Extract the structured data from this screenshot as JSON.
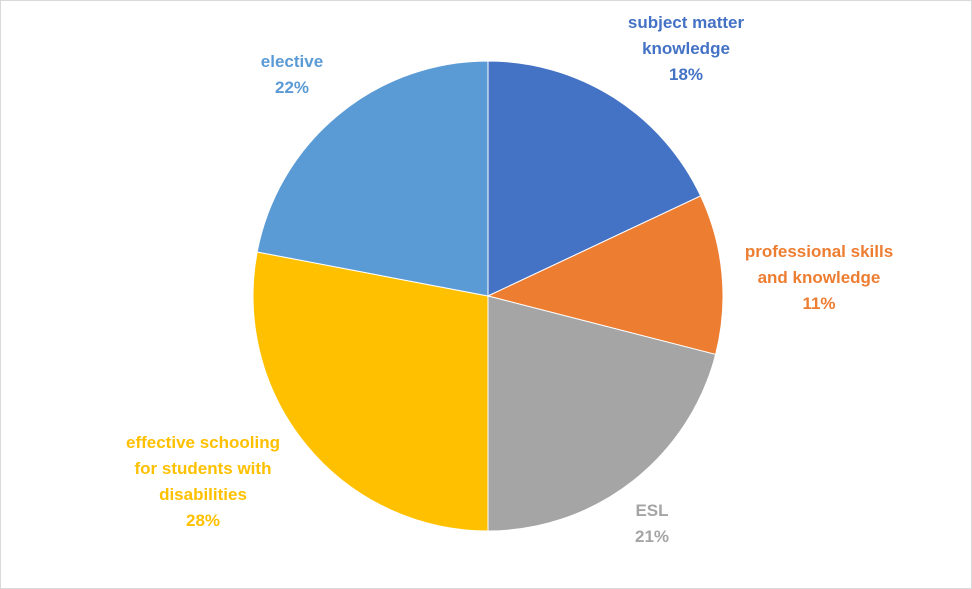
{
  "chart_data": {
    "type": "pie",
    "slices": [
      {
        "label_lines": [
          "subject matter",
          "knowledge"
        ],
        "percent_label": "18%",
        "value": 18,
        "color": "#4472C4"
      },
      {
        "label_lines": [
          "professional skills",
          "and knowledge"
        ],
        "percent_label": "11%",
        "value": 11,
        "color": "#ED7D31"
      },
      {
        "label_lines": [
          "ESL"
        ],
        "percent_label": "21%",
        "value": 21,
        "color": "#A5A5A5"
      },
      {
        "label_lines": [
          "effective schooling",
          "for students with",
          "disabilities"
        ],
        "percent_label": "28%",
        "value": 28,
        "color": "#FFC000"
      },
      {
        "label_lines": [
          "elective"
        ],
        "percent_label": "22%",
        "value": 22,
        "color": "#5B9BD5"
      }
    ],
    "start_angle": "12 o'clock",
    "direction": "clockwise",
    "legend": "none"
  }
}
